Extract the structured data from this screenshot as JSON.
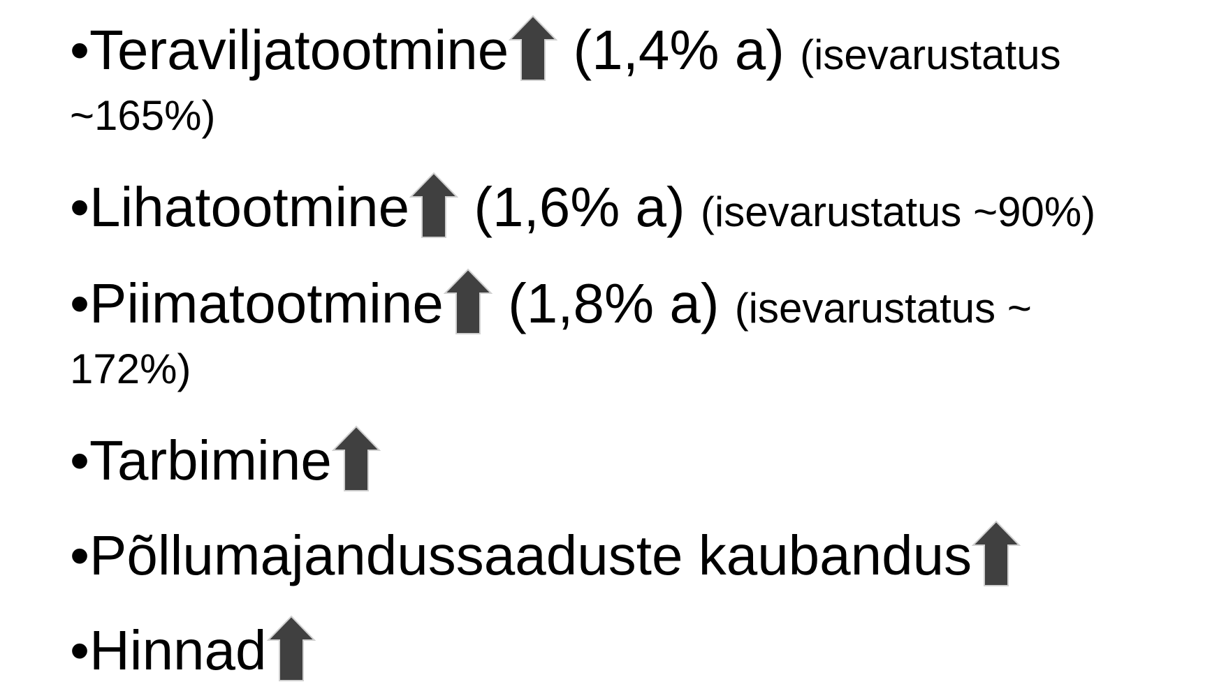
{
  "items": [
    {
      "label": "Teraviljatootmine",
      "rate": "(1,4% a)",
      "note": "(isevarustatus ~165%)"
    },
    {
      "label": "Lihatootmine",
      "rate": "(1,6% a)",
      "note": "(isevarustatus ~90%)"
    },
    {
      "label": "Piimatootmine",
      "rate": "(1,8% a)",
      "note": "(isevarustatus ~ 172%)"
    },
    {
      "label": "Tarbimine"
    },
    {
      "label": "Põllumajandussaaduste kaubandus"
    },
    {
      "label": "Hinnad"
    }
  ]
}
